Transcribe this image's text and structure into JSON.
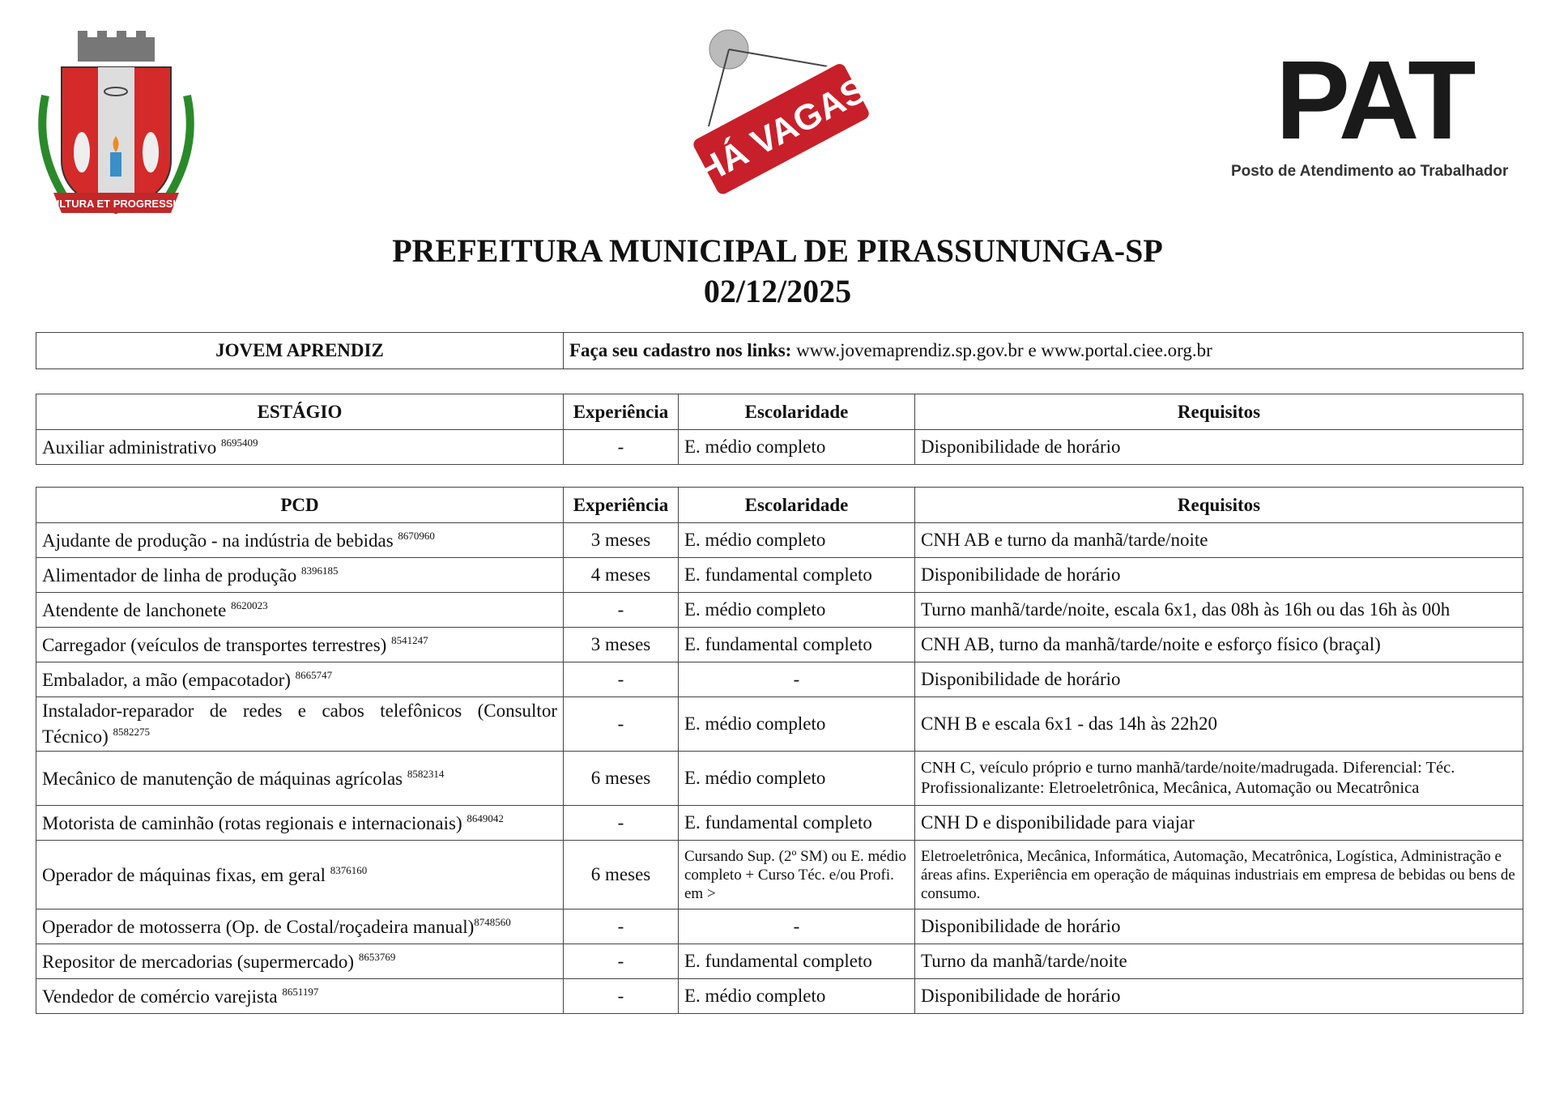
{
  "header": {
    "coat_of_arms_motto": "CULTURA ET PROGRESSUS",
    "sign_text": "HÁ VAGAS",
    "pat_logo": "PAT",
    "pat_subtitle": "Posto de Atendimento ao Trabalhador",
    "title": "PREFEITURA MUNICIPAL DE PIRASSUNUNGA-SP",
    "date": "02/12/2025"
  },
  "jovem_aprendiz": {
    "label": "JOVEM APRENDIZ",
    "info_bold": "Faça seu cadastro nos links:",
    "info_links": " www.jovemaprendiz.sp.gov.br e www.portal.ciee.org.br"
  },
  "estagio": {
    "headers": [
      "ESTÁGIO",
      "Experiência",
      "Escolaridade",
      "Requisitos"
    ],
    "rows": [
      {
        "vaga": "Auxiliar administrativo ",
        "codigo": "8695409",
        "experiencia": "-",
        "escolaridade": "E. médio completo",
        "requisitos": "Disponibilidade de horário"
      }
    ]
  },
  "pcd": {
    "headers": [
      "PCD",
      "Experiência",
      "Escolaridade",
      "Requisitos"
    ],
    "rows": [
      {
        "vaga": "Ajudante de produção - na indústria de bebidas ",
        "codigo": "8670960",
        "experiencia": "3 meses",
        "escolaridade": "E. médio completo",
        "requisitos": "CNH AB e turno da manhã/tarde/noite"
      },
      {
        "vaga": "Alimentador de linha de produção ",
        "codigo": "8396185",
        "experiencia": "4 meses",
        "escolaridade": "E. fundamental completo",
        "requisitos": "Disponibilidade de horário"
      },
      {
        "vaga": "Atendente de lanchonete ",
        "codigo": "8620023",
        "experiencia": "-",
        "escolaridade": "E. médio completo",
        "requisitos": "Turno manhã/tarde/noite, escala 6x1, das 08h às 16h ou das 16h às 00h"
      },
      {
        "vaga": "Carregador (veículos de transportes terrestres) ",
        "codigo": "8541247",
        "experiencia": "3 meses",
        "escolaridade": "E. fundamental completo",
        "requisitos": "CNH AB, turno da manhã/tarde/noite e esforço físico (braçal)"
      },
      {
        "vaga": "Embalador, a mão (empacotador) ",
        "codigo": "8665747",
        "experiencia": "-",
        "escolaridade": "-",
        "requisitos": "Disponibilidade de horário"
      },
      {
        "vaga": "Instalador-reparador de redes e cabos telefônicos (Consultor Técnico) ",
        "codigo": "8582275",
        "experiencia": "-",
        "escolaridade": "E. médio completo",
        "requisitos": "CNH B e escala 6x1 - das 14h às 22h20"
      },
      {
        "vaga": "Mecânico de manutenção de máquinas agrícolas ",
        "codigo": "8582314",
        "experiencia": "6 meses",
        "escolaridade": "E. médio completo",
        "requisitos": "CNH C, veículo próprio e turno manhã/tarde/noite/madrugada. Diferencial: Téc. Profissionalizante: Eletroeletrônica, Mecânica, Automação ou Mecatrônica"
      },
      {
        "vaga": "Motorista de caminhão (rotas regionais e internacionais) ",
        "codigo": "8649042",
        "experiencia": "-",
        "escolaridade": "E. fundamental completo",
        "requisitos": "CNH D e disponibilidade para viajar"
      },
      {
        "vaga": "Operador de máquinas fixas, em geral ",
        "codigo": "8376160",
        "experiencia": "6 meses",
        "escolaridade": "Cursando Sup. (2º SM) ou E. médio completo + Curso Téc. e/ou Profi. em >",
        "requisitos": "Eletroeletrônica, Mecânica, Informática, Automação, Mecatrônica, Logística, Administração e áreas afins. Experiência em operação de máquinas industriais em empresa de bebidas ou bens de consumo."
      },
      {
        "vaga": "Operador de motosserra (Op. de Costal/roçadeira manual)",
        "codigo": "8748560",
        "experiencia": "-",
        "escolaridade": "-",
        "requisitos": "Disponibilidade de horário"
      },
      {
        "vaga": "Repositor de mercadorias (supermercado) ",
        "codigo": "8653769",
        "experiencia": "-",
        "escolaridade": "E. fundamental completo",
        "requisitos": "Turno da manhã/tarde/noite"
      },
      {
        "vaga": "Vendedor de comércio varejista ",
        "codigo": "8651197",
        "experiencia": "-",
        "escolaridade": "E. médio completo",
        "requisitos": "Disponibilidade de horário"
      }
    ]
  }
}
